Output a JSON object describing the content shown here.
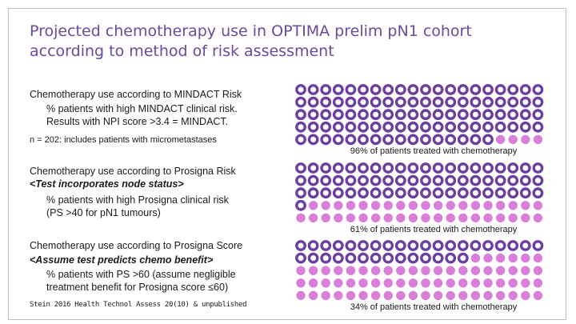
{
  "title_line1": "Projected chemotherapy use in OPTIMA prelim pN1 cohort",
  "title_line2": "according to method of risk assessment",
  "sections": [
    {
      "heading": "Chemotherapy use according to MINDACT Risk",
      "subheading": "",
      "desc_line1": "% patients with high MINDACT clinical risk.",
      "desc_line2": "Results with NPI score >3.4 = MINDACT."
    },
    {
      "heading": "Chemotherapy use according to Prosigna Risk",
      "subheading": "<Test incorporates node status>",
      "desc_line1": "% patients with high Prosigna clinical risk",
      "desc_line2": "(PS >40 for pN1 tumours)"
    },
    {
      "heading": "Chemotherapy use according to Prosigna Score",
      "subheading": "<Assume test predicts chemo benefit>",
      "desc_line1": "% patients with PS >60 (assume negligible",
      "desc_line2": "treatment benefit for Prosigna score ≤60)"
    }
  ],
  "note": "n = 202: includes patients with micrometastases",
  "citation": "Stein 2016 Health Technol Assess 20(10) & unpublished",
  "chart_data": {
    "type": "pictogram",
    "grid": {
      "columns": 20,
      "rows": 5,
      "total": 100
    },
    "colors": {
      "treated": "#6b3fa0",
      "treated_fill": "#ffffff",
      "untreated": "#d97fd9"
    },
    "panels": [
      {
        "percent": 96,
        "label": "96% of patients treated with chemotherapy"
      },
      {
        "percent": 61,
        "label": "61% of patients treated with chemotherapy"
      },
      {
        "percent": 34,
        "label": "34% of patients treated with chemotherapy"
      }
    ]
  }
}
